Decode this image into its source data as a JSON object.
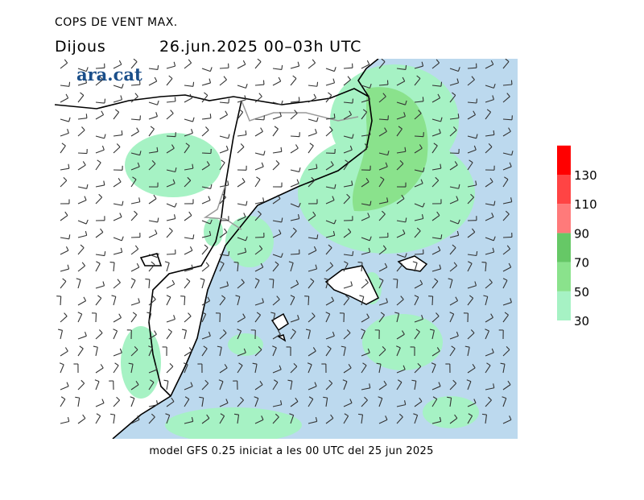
{
  "header": {
    "title": "COPS DE VENT MAX.",
    "day": "Dijous",
    "period": "26.jun.2025 00–03h UTC",
    "brand": "ara.cat"
  },
  "footer": "model GFS 0.25 iniciat a les 00 UTC del 25 jun 2025",
  "legend": {
    "levels": [
      30,
      50,
      70,
      90,
      110,
      130
    ],
    "colors": [
      "#a6f2c4",
      "#8ae28c",
      "#66c866",
      "#ff7a7a",
      "#ff4444",
      "#ff0000"
    ]
  }
}
